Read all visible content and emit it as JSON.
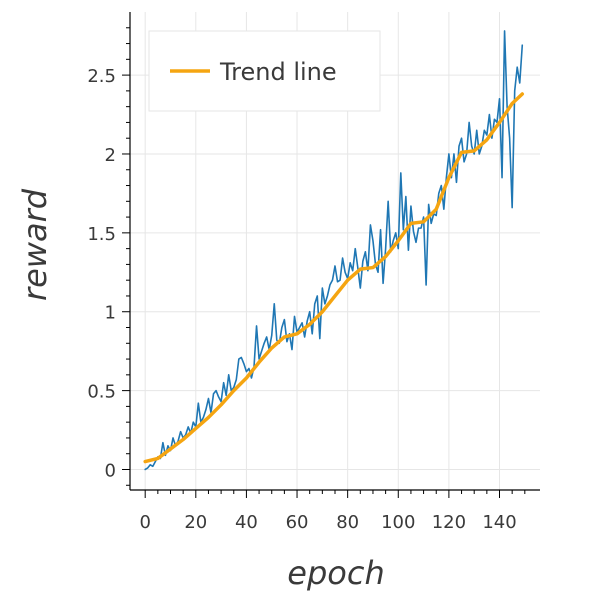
{
  "chart_data": {
    "type": "line",
    "title": "",
    "xlabel": "epoch",
    "ylabel": "reward",
    "xlim": [
      -6,
      156
    ],
    "ylim": [
      -0.13,
      2.9
    ],
    "xticks": [
      0,
      20,
      40,
      60,
      80,
      100,
      120,
      140
    ],
    "yticks": [
      0,
      0.5,
      1,
      1.5,
      2,
      2.5
    ],
    "ytick_labels": [
      "0",
      "0.5",
      "1",
      "1.5",
      "2",
      "2.5"
    ],
    "grid": true,
    "legend": {
      "position": "top-left",
      "entries": [
        "Trend line"
      ]
    },
    "series": [
      {
        "name": "",
        "color": "#1f77b4",
        "x": [
          0,
          1,
          2,
          3,
          4,
          5,
          6,
          7,
          8,
          9,
          10,
          11,
          12,
          13,
          14,
          15,
          16,
          17,
          18,
          19,
          20,
          21,
          22,
          23,
          24,
          25,
          26,
          27,
          28,
          29,
          30,
          31,
          32,
          33,
          34,
          35,
          36,
          37,
          38,
          39,
          40,
          41,
          42,
          43,
          44,
          45,
          46,
          47,
          48,
          49,
          50,
          51,
          52,
          53,
          54,
          55,
          56,
          57,
          58,
          59,
          60,
          61,
          62,
          63,
          64,
          65,
          66,
          67,
          68,
          69,
          70,
          71,
          72,
          73,
          74,
          75,
          76,
          77,
          78,
          79,
          80,
          81,
          82,
          83,
          84,
          85,
          86,
          87,
          88,
          89,
          90,
          91,
          92,
          93,
          94,
          95,
          96,
          97,
          98,
          99,
          100,
          101,
          102,
          103,
          104,
          105,
          106,
          107,
          108,
          109,
          110,
          111,
          112,
          113,
          114,
          115,
          116,
          117,
          118,
          119,
          120,
          121,
          122,
          123,
          124,
          125,
          126,
          127,
          128,
          129,
          130,
          131,
          132,
          133,
          134,
          135,
          136,
          137,
          138,
          139,
          140,
          141,
          142,
          143,
          144,
          145,
          146,
          147,
          148,
          149
        ],
        "y": [
          0.0,
          0.01,
          0.03,
          0.02,
          0.05,
          0.08,
          0.07,
          0.17,
          0.09,
          0.15,
          0.12,
          0.2,
          0.15,
          0.18,
          0.24,
          0.2,
          0.22,
          0.27,
          0.23,
          0.3,
          0.27,
          0.42,
          0.3,
          0.33,
          0.38,
          0.45,
          0.36,
          0.48,
          0.5,
          0.46,
          0.43,
          0.55,
          0.47,
          0.6,
          0.5,
          0.52,
          0.57,
          0.7,
          0.71,
          0.67,
          0.62,
          0.64,
          0.58,
          0.65,
          0.91,
          0.7,
          0.75,
          0.8,
          0.84,
          0.76,
          0.85,
          1.05,
          0.82,
          0.8,
          0.9,
          0.95,
          0.81,
          0.86,
          0.76,
          0.97,
          0.87,
          0.9,
          0.93,
          0.84,
          0.94,
          1.0,
          0.86,
          1.05,
          1.1,
          0.83,
          1.15,
          1.05,
          1.1,
          1.17,
          1.2,
          1.29,
          1.19,
          1.2,
          1.34,
          1.25,
          1.21,
          1.31,
          1.26,
          1.4,
          1.28,
          1.15,
          1.32,
          1.38,
          1.26,
          1.55,
          1.45,
          1.3,
          1.25,
          1.52,
          1.18,
          1.4,
          1.7,
          1.38,
          1.45,
          1.5,
          1.4,
          1.88,
          1.52,
          1.73,
          1.39,
          1.67,
          1.51,
          1.44,
          1.53,
          1.53,
          1.6,
          1.17,
          1.68,
          1.56,
          1.62,
          1.61,
          1.75,
          1.8,
          1.65,
          1.85,
          2.0,
          1.85,
          2.0,
          1.82,
          2.05,
          2.1,
          1.95,
          2.0,
          2.2,
          2.05,
          2.0,
          2.15,
          2.0,
          2.05,
          2.15,
          2.12,
          2.25,
          2.1,
          2.22,
          2.2,
          2.35,
          1.85,
          2.78,
          2.3,
          2.1,
          1.66,
          2.4,
          2.55,
          2.45,
          2.69
        ]
      },
      {
        "name": "Trend line",
        "color": "#f5a511",
        "x": [
          0,
          5,
          10,
          15,
          20,
          25,
          30,
          35,
          40,
          45,
          50,
          55,
          60,
          65,
          70,
          75,
          80,
          85,
          90,
          95,
          100,
          105,
          110,
          115,
          120,
          125,
          130,
          135,
          140,
          145,
          149
        ],
        "y": [
          0.05,
          0.07,
          0.13,
          0.19,
          0.26,
          0.33,
          0.41,
          0.5,
          0.58,
          0.68,
          0.77,
          0.84,
          0.86,
          0.92,
          1.0,
          1.1,
          1.2,
          1.27,
          1.28,
          1.35,
          1.45,
          1.56,
          1.57,
          1.65,
          1.85,
          2.01,
          2.02,
          2.09,
          2.2,
          2.32,
          2.38
        ]
      }
    ]
  }
}
